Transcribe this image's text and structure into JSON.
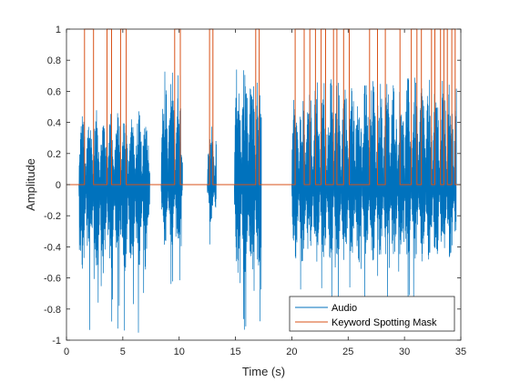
{
  "chart_data": {
    "type": "line",
    "title": "",
    "xlabel": "Time (s)",
    "ylabel": "Amplitude",
    "xlim": [
      0,
      35
    ],
    "ylim": [
      -1,
      1
    ],
    "xticks": [
      0,
      5,
      10,
      15,
      20,
      25,
      30,
      35
    ],
    "yticks": [
      -1,
      -0.8,
      -0.6,
      -0.4,
      -0.2,
      0,
      0.2,
      0.4,
      0.6,
      0.8,
      1
    ],
    "grid": false,
    "legend_position": "bottom-right",
    "series": [
      {
        "name": "Audio",
        "color": "#0072BD",
        "style": "dense waveform",
        "segments": [
          {
            "start": 1.1,
            "end": 7.4,
            "max": 0.48,
            "min": -0.97
          },
          {
            "start": 8.4,
            "end": 10.3,
            "max": 0.76,
            "min": -0.67
          },
          {
            "start": 12.5,
            "end": 13.3,
            "max": 0.42,
            "min": -0.42
          },
          {
            "start": 14.9,
            "end": 17.3,
            "max": 0.82,
            "min": -0.98
          },
          {
            "start": 20.0,
            "end": 34.6,
            "max": 0.7,
            "min": -0.86
          }
        ]
      },
      {
        "name": "Keyword Spotting Mask",
        "color": "#D95319",
        "style": "step",
        "on_intervals": [
          [
            1.6,
            2.4
          ],
          [
            3.6,
            4.0
          ],
          [
            4.8,
            5.3
          ],
          [
            9.6,
            10.1
          ],
          [
            12.7,
            13.0
          ],
          [
            16.8,
            17.1
          ],
          [
            20.3,
            21.1
          ],
          [
            21.6,
            22.1
          ],
          [
            22.6,
            23.0
          ],
          [
            23.7,
            24.0
          ],
          [
            24.6,
            25.1
          ],
          [
            26.9,
            27.6
          ],
          [
            28.3,
            29.6
          ],
          [
            30.6,
            31.1
          ],
          [
            31.5,
            32.4
          ],
          [
            32.7,
            33.2
          ],
          [
            33.5,
            33.8
          ],
          [
            34.2,
            34.5
          ]
        ]
      }
    ]
  }
}
